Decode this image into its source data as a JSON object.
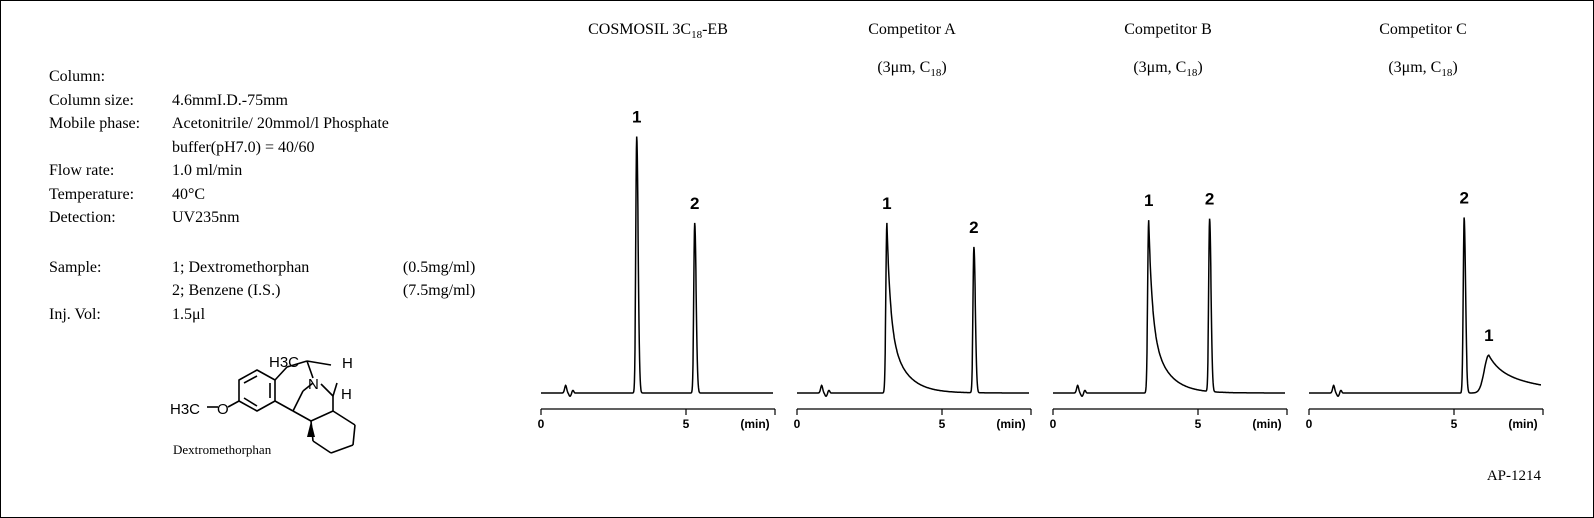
{
  "conditions": {
    "column_label": "Column:",
    "rows": [
      {
        "label": "Column size:",
        "value": "4.6mmI.D.-75mm"
      },
      {
        "label": "Mobile phase:",
        "value": "Acetonitrile/ 20mmol/l Phosphate"
      },
      {
        "label": "",
        "value": "buffer(pH7.0) = 40/60"
      },
      {
        "label": "Flow rate:",
        "value": "1.0 ml/min"
      },
      {
        "label": "Temperature:",
        "value": "40°C"
      },
      {
        "label": "Detection:",
        "value": "UV235nm"
      }
    ],
    "samples_label": "Sample:",
    "samples": [
      {
        "name": "1; Dextromethorphan",
        "conc": "(0.5mg/ml)"
      },
      {
        "name": "2; Benzene (I.S.)",
        "conc": "(7.5mg/ml)"
      }
    ],
    "inj_label": "Inj. Vol:",
    "inj_value": "1.5μl"
  },
  "structure": {
    "h3c_top": "H3C",
    "n": "N",
    "h_top": "H",
    "h_mid": "H",
    "h3c_left": "H3C",
    "o": "O",
    "caption": "Dextromethorphan"
  },
  "footer": {
    "code": "AP-1214"
  },
  "chart_data": [
    {
      "type": "line",
      "title_main": "COSMOSIL 3C",
      "title_sub": "18",
      "title_suffix": "-EB",
      "subtitle": "",
      "xlabel": "(min)",
      "ylabel": "",
      "xlim": [
        0,
        8
      ],
      "xticks": [
        0,
        5
      ],
      "grid": false,
      "peaks": [
        {
          "label": "1",
          "time": 3.3,
          "height": 0.95,
          "tail": "sharp"
        },
        {
          "label": "2",
          "time": 5.3,
          "height": 0.63,
          "tail": "sharp"
        }
      ]
    },
    {
      "type": "line",
      "title_main": "Competitor A",
      "title_sub": "",
      "title_suffix": "",
      "subtitle": "(3μm, C",
      "subtitle_sub": "18",
      "subtitle_suffix": ")",
      "xlabel": "(min)",
      "ylabel": "",
      "xlim": [
        0,
        8
      ],
      "xticks": [
        0,
        5
      ],
      "grid": false,
      "peaks": [
        {
          "label": "1",
          "time": 3.1,
          "height": 0.63,
          "tail": "tailing"
        },
        {
          "label": "2",
          "time": 6.1,
          "height": 0.54,
          "tail": "sharp"
        }
      ]
    },
    {
      "type": "line",
      "title_main": "Competitor B",
      "title_sub": "",
      "title_suffix": "",
      "subtitle": "(3μm, C",
      "subtitle_sub": "18",
      "subtitle_suffix": ")",
      "xlabel": "(min)",
      "ylabel": "",
      "xlim": [
        0,
        8
      ],
      "xticks": [
        0,
        5
      ],
      "grid": false,
      "peaks": [
        {
          "label": "1",
          "time": 3.3,
          "height": 0.64,
          "tail": "tailing"
        },
        {
          "label": "2",
          "time": 5.4,
          "height": 0.64,
          "tail": "sharp"
        }
      ]
    },
    {
      "type": "line",
      "title_main": "Competitor C",
      "title_sub": "",
      "title_suffix": "",
      "subtitle": "(3μm, C",
      "subtitle_sub": "18",
      "subtitle_suffix": ")",
      "xlabel": "(min)",
      "ylabel": "",
      "xlim": [
        0,
        8
      ],
      "xticks": [
        0,
        5
      ],
      "grid": false,
      "peaks": [
        {
          "label": "2",
          "time": 5.35,
          "height": 0.65,
          "tail": "sharp"
        },
        {
          "label": "1",
          "time": 6.2,
          "height": 0.14,
          "tail": "broad"
        }
      ]
    }
  ]
}
